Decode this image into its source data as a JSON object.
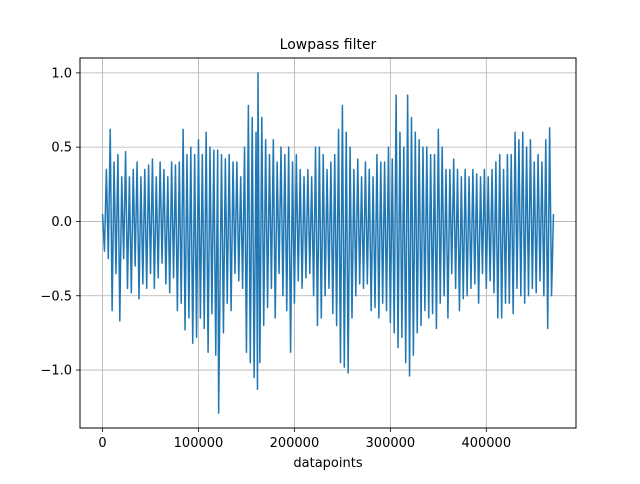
{
  "chart_data": {
    "type": "line",
    "title": "Lowpass filter",
    "xlabel": "datapoints",
    "ylabel": "",
    "xlim": [
      -23500,
      493500
    ],
    "ylim": [
      -1.39,
      1.1
    ],
    "xticks": [
      0,
      100000,
      200000,
      300000,
      400000
    ],
    "xtick_labels": [
      "0",
      "100000",
      "200000",
      "300000",
      "400000"
    ],
    "yticks": [
      -1.0,
      -0.5,
      0.0,
      0.5,
      1.0
    ],
    "ytick_labels": [
      "−1.0",
      "−0.5",
      "0.0",
      "0.5",
      "1.0"
    ],
    "grid": true,
    "series": [
      {
        "color": "#1f77b4",
        "x_start": 0,
        "x_end": 470000,
        "points": [
          [
            0,
            0.05
          ],
          [
            2000,
            -0.2
          ],
          [
            4000,
            0.35
          ],
          [
            6000,
            -0.25
          ],
          [
            8000,
            0.62
          ],
          [
            10000,
            -0.6
          ],
          [
            12000,
            0.4
          ],
          [
            14000,
            -0.35
          ],
          [
            16000,
            0.45
          ],
          [
            18000,
            -0.67
          ],
          [
            20000,
            0.3
          ],
          [
            22000,
            -0.25
          ],
          [
            24000,
            0.47
          ],
          [
            26000,
            -0.45
          ],
          [
            28000,
            0.3
          ],
          [
            30000,
            -0.48
          ],
          [
            32000,
            0.35
          ],
          [
            34000,
            -0.3
          ],
          [
            36000,
            0.4
          ],
          [
            38000,
            -0.52
          ],
          [
            40000,
            0.3
          ],
          [
            42000,
            -0.42
          ],
          [
            44000,
            0.35
          ],
          [
            46000,
            -0.45
          ],
          [
            48000,
            0.38
          ],
          [
            50000,
            -0.35
          ],
          [
            52000,
            0.42
          ],
          [
            54000,
            -0.45
          ],
          [
            56000,
            0.3
          ],
          [
            58000,
            -0.38
          ],
          [
            60000,
            0.4
          ],
          [
            62000,
            -0.28
          ],
          [
            64000,
            0.35
          ],
          [
            66000,
            -0.42
          ],
          [
            68000,
            0.3
          ],
          [
            70000,
            -0.48
          ],
          [
            72000,
            0.4
          ],
          [
            74000,
            -0.38
          ],
          [
            76000,
            0.38
          ],
          [
            78000,
            -0.6
          ],
          [
            80000,
            0.4
          ],
          [
            82000,
            -0.55
          ],
          [
            84000,
            0.62
          ],
          [
            86000,
            -0.73
          ],
          [
            88000,
            0.45
          ],
          [
            90000,
            -0.65
          ],
          [
            92000,
            0.5
          ],
          [
            94000,
            -0.82
          ],
          [
            96000,
            0.45
          ],
          [
            98000,
            -0.78
          ],
          [
            100000,
            0.55
          ],
          [
            102000,
            -0.65
          ],
          [
            104000,
            0.45
          ],
          [
            106000,
            -0.72
          ],
          [
            108000,
            0.6
          ],
          [
            110000,
            -0.88
          ],
          [
            112000,
            0.5
          ],
          [
            114000,
            -0.62
          ],
          [
            116000,
            0.48
          ],
          [
            118000,
            -0.9
          ],
          [
            120000,
            0.48
          ],
          [
            121000,
            -1.29
          ],
          [
            124000,
            0.45
          ],
          [
            126000,
            -0.75
          ],
          [
            128000,
            0.42
          ],
          [
            130000,
            -0.55
          ],
          [
            132000,
            0.45
          ],
          [
            134000,
            -0.6
          ],
          [
            136000,
            0.4
          ],
          [
            138000,
            -0.35
          ],
          [
            140000,
            0.4
          ],
          [
            142000,
            -0.4
          ],
          [
            144000,
            0.3
          ],
          [
            146000,
            -0.45
          ],
          [
            148000,
            0.5
          ],
          [
            150000,
            -0.88
          ],
          [
            152000,
            0.78
          ],
          [
            154000,
            -0.95
          ],
          [
            156000,
            0.7
          ],
          [
            158000,
            -1.05
          ],
          [
            160000,
            0.6
          ],
          [
            161500,
            -1.13
          ],
          [
            162000,
            1.0
          ],
          [
            164000,
            -0.95
          ],
          [
            166000,
            0.7
          ],
          [
            168000,
            -0.7
          ],
          [
            170000,
            0.55
          ],
          [
            172000,
            -0.58
          ],
          [
            174000,
            0.45
          ],
          [
            176000,
            -0.45
          ],
          [
            178000,
            0.55
          ],
          [
            180000,
            -0.65
          ],
          [
            182000,
            0.4
          ],
          [
            184000,
            -0.35
          ],
          [
            186000,
            0.5
          ],
          [
            188000,
            -0.5
          ],
          [
            190000,
            0.45
          ],
          [
            192000,
            -0.6
          ],
          [
            194000,
            0.5
          ],
          [
            196000,
            -0.88
          ],
          [
            198000,
            0.4
          ],
          [
            200000,
            -0.55
          ],
          [
            202000,
            0.45
          ],
          [
            204000,
            -0.4
          ],
          [
            206000,
            0.35
          ],
          [
            208000,
            -0.45
          ],
          [
            210000,
            0.3
          ],
          [
            212000,
            -0.38
          ],
          [
            214000,
            0.35
          ],
          [
            216000,
            -0.35
          ],
          [
            218000,
            0.3
          ],
          [
            220000,
            -0.5
          ],
          [
            222000,
            0.5
          ],
          [
            224000,
            -0.7
          ],
          [
            226000,
            0.5
          ],
          [
            228000,
            -0.65
          ],
          [
            230000,
            0.45
          ],
          [
            232000,
            -0.5
          ],
          [
            234000,
            0.35
          ],
          [
            236000,
            -0.45
          ],
          [
            238000,
            0.4
          ],
          [
            240000,
            -0.62
          ],
          [
            242000,
            0.45
          ],
          [
            244000,
            -0.7
          ],
          [
            246000,
            0.62
          ],
          [
            248000,
            -0.95
          ],
          [
            250000,
            0.78
          ],
          [
            252000,
            -0.98
          ],
          [
            254000,
            0.6
          ],
          [
            256000,
            -1.02
          ],
          [
            258000,
            0.5
          ],
          [
            260000,
            -0.65
          ],
          [
            262000,
            0.35
          ],
          [
            264000,
            -0.5
          ],
          [
            266000,
            0.42
          ],
          [
            268000,
            -0.42
          ],
          [
            270000,
            0.3
          ],
          [
            272000,
            -0.45
          ],
          [
            274000,
            0.4
          ],
          [
            276000,
            -0.42
          ],
          [
            278000,
            0.35
          ],
          [
            280000,
            -0.6
          ],
          [
            282000,
            0.3
          ],
          [
            284000,
            -0.58
          ],
          [
            286000,
            0.45
          ],
          [
            288000,
            -0.65
          ],
          [
            290000,
            0.4
          ],
          [
            292000,
            -0.55
          ],
          [
            294000,
            0.4
          ],
          [
            296000,
            -0.6
          ],
          [
            298000,
            0.5
          ],
          [
            300000,
            -0.68
          ],
          [
            302000,
            0.42
          ],
          [
            304000,
            -0.75
          ],
          [
            306000,
            0.85
          ],
          [
            308000,
            -0.85
          ],
          [
            310000,
            0.6
          ],
          [
            312000,
            -0.78
          ],
          [
            314000,
            0.5
          ],
          [
            316000,
            -0.95
          ],
          [
            318000,
            0.85
          ],
          [
            320000,
            -1.04
          ],
          [
            322000,
            0.7
          ],
          [
            324000,
            -0.9
          ],
          [
            326000,
            0.6
          ],
          [
            328000,
            -0.75
          ],
          [
            330000,
            0.55
          ],
          [
            332000,
            -0.7
          ],
          [
            334000,
            0.5
          ],
          [
            336000,
            -0.6
          ],
          [
            338000,
            0.5
          ],
          [
            340000,
            -0.65
          ],
          [
            342000,
            0.45
          ],
          [
            344000,
            -0.62
          ],
          [
            346000,
            0.45
          ],
          [
            348000,
            -0.72
          ],
          [
            350000,
            0.62
          ],
          [
            352000,
            -0.55
          ],
          [
            354000,
            0.5
          ],
          [
            356000,
            -0.5
          ],
          [
            358000,
            0.35
          ],
          [
            360000,
            -0.65
          ],
          [
            362000,
            0.35
          ],
          [
            364000,
            -0.35
          ],
          [
            366000,
            0.42
          ],
          [
            368000,
            -0.45
          ],
          [
            370000,
            0.35
          ],
          [
            372000,
            -0.6
          ],
          [
            374000,
            0.3
          ],
          [
            376000,
            -0.52
          ],
          [
            378000,
            0.35
          ],
          [
            380000,
            -0.5
          ],
          [
            382000,
            0.3
          ],
          [
            384000,
            -0.45
          ],
          [
            386000,
            0.35
          ],
          [
            388000,
            -0.42
          ],
          [
            390000,
            0.32
          ],
          [
            392000,
            -0.55
          ],
          [
            394000,
            0.3
          ],
          [
            396000,
            -0.35
          ],
          [
            398000,
            0.35
          ],
          [
            400000,
            -0.45
          ],
          [
            402000,
            0.3
          ],
          [
            404000,
            -0.4
          ],
          [
            406000,
            0.35
          ],
          [
            408000,
            -0.48
          ],
          [
            410000,
            0.4
          ],
          [
            412000,
            -0.65
          ],
          [
            414000,
            0.45
          ],
          [
            416000,
            -0.65
          ],
          [
            418000,
            0.35
          ],
          [
            420000,
            -0.55
          ],
          [
            422000,
            0.45
          ],
          [
            424000,
            -0.55
          ],
          [
            426000,
            0.45
          ],
          [
            428000,
            -0.62
          ],
          [
            430000,
            0.6
          ],
          [
            432000,
            -0.45
          ],
          [
            434000,
            0.55
          ],
          [
            436000,
            -0.5
          ],
          [
            438000,
            0.6
          ],
          [
            440000,
            -0.55
          ],
          [
            442000,
            0.5
          ],
          [
            444000,
            -0.5
          ],
          [
            446000,
            0.55
          ],
          [
            448000,
            -0.45
          ],
          [
            450000,
            0.4
          ],
          [
            452000,
            -0.48
          ],
          [
            454000,
            0.45
          ],
          [
            456000,
            -0.4
          ],
          [
            458000,
            0.4
          ],
          [
            460000,
            -0.5
          ],
          [
            462000,
            0.55
          ],
          [
            464000,
            -0.72
          ],
          [
            466000,
            0.63
          ],
          [
            468000,
            -0.5
          ],
          [
            470000,
            0.05
          ]
        ]
      }
    ]
  }
}
